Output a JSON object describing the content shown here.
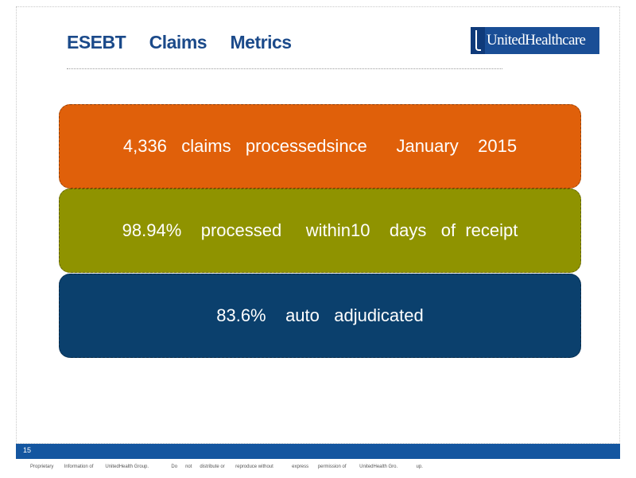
{
  "slide": {
    "title": "ESEBT     Claims     Metrics",
    "logo_text": "UnitedHealthcare",
    "page_number": "15",
    "footer": "Proprietary        Information of         UnitedHealth Group.                 Do      not      distribute or        reproduce without              express       permission of          UnitedHealth Gro.              up."
  },
  "metrics": [
    {
      "text": "4,336   claims   processedsince      January    2015",
      "color": "#e0600a"
    },
    {
      "text": "98.94%    processed     within10    days   of  receipt",
      "color": "#8f9300"
    },
    {
      "text": "83.6%    auto   adjudicated",
      "color": "#0b406d"
    }
  ],
  "colors": {
    "title": "#1b4a8a",
    "footer_bar": "#1456a0",
    "logo": "#1a4e96"
  }
}
